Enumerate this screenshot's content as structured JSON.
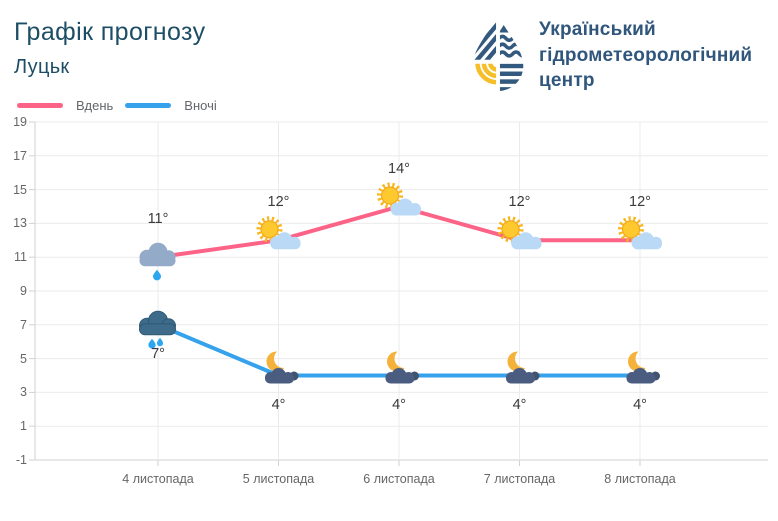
{
  "header": {
    "title": "Графік прогнозу",
    "subtitle": "Луцьк",
    "logo": {
      "text_lines": [
        "Український",
        "гідрометеорологічний",
        "центр"
      ],
      "navy": "#33597e",
      "yellow": "#f6bf29"
    }
  },
  "legend": [
    {
      "label": "Вдень",
      "color": "#fc6386"
    },
    {
      "label": "Вночі",
      "color": "#36a2eb"
    }
  ],
  "chart_data": {
    "type": "line",
    "categories": [
      "4 листопада",
      "5 листопада",
      "6 листопада",
      "7 листопада",
      "8 листопада"
    ],
    "series": [
      {
        "name": "Вдень",
        "color": "#fc6386",
        "values": [
          11,
          12,
          14,
          12,
          12
        ],
        "labels": [
          "11°",
          "12°",
          "14°",
          "12°",
          "12°"
        ],
        "label_side": "above",
        "icons": [
          "cloud-rain-day",
          "sun-cloud",
          "sun-cloud",
          "sun-cloud",
          "sun-cloud"
        ]
      },
      {
        "name": "Вночі",
        "color": "#36a2eb",
        "values": [
          7,
          4,
          4,
          4,
          4
        ],
        "labels": [
          "7°",
          "4°",
          "4°",
          "4°",
          "4°"
        ],
        "label_side": "below",
        "icons": [
          "cloud-rain-night",
          "moon-cloud",
          "moon-cloud",
          "moon-cloud",
          "moon-cloud"
        ]
      }
    ],
    "ylim": [
      -1,
      19
    ],
    "yticks": [
      19,
      17,
      15,
      13,
      11,
      9,
      7,
      5,
      3,
      1,
      -1
    ],
    "grid": true,
    "legend_position": "top-left"
  }
}
